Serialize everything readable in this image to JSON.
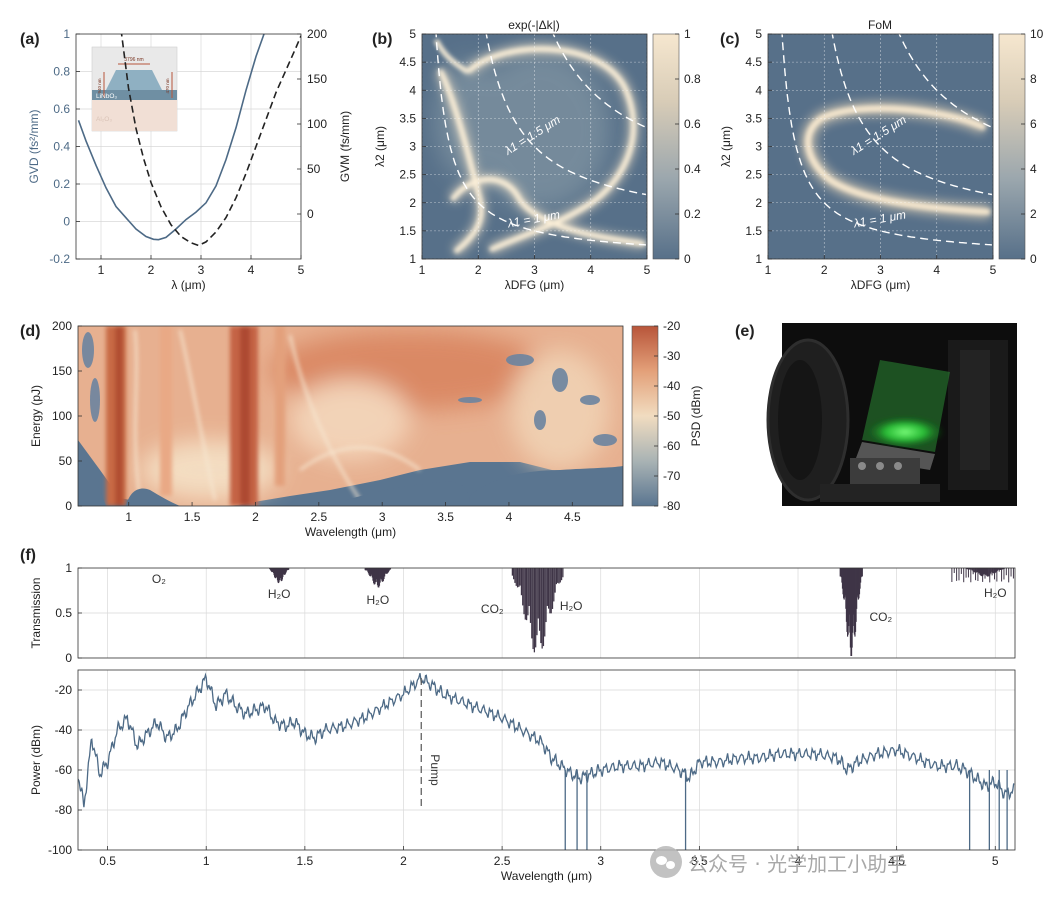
{
  "chart_data": [
    {
      "panel": "(a)",
      "type": "line",
      "xlabel": "λ (μm)",
      "ylabel_left": "GVD (fs²/mm)",
      "ylabel_right": "GVM (fs/mm)",
      "xlim": [
        0.5,
        5
      ],
      "ylim_left": [
        -0.2,
        1
      ],
      "ylim_right": [
        -50,
        200
      ],
      "x_ticks": [
        "1",
        "2",
        "3",
        "4",
        "5"
      ],
      "y_ticks_left": [
        "-0.2",
        "0",
        "0.2",
        "0.4",
        "0.6",
        "0.8",
        "1"
      ],
      "y_ticks_right": [
        "0",
        "50",
        "100",
        "150",
        "200"
      ],
      "series": [
        {
          "axis": "left",
          "style": "solid",
          "color": "#4d6a86",
          "x": [
            0.55,
            0.7,
            0.9,
            1.1,
            1.3,
            1.5,
            1.7,
            1.9,
            2.05,
            2.15,
            2.3,
            2.5,
            2.7,
            2.9,
            3.1,
            3.3,
            3.5,
            3.7,
            3.9,
            4.1,
            4.3
          ],
          "y": [
            0.54,
            0.43,
            0.3,
            0.18,
            0.08,
            0.02,
            -0.04,
            -0.08,
            -0.095,
            -0.097,
            -0.085,
            -0.04,
            0.01,
            0.05,
            0.1,
            0.19,
            0.33,
            0.5,
            0.7,
            0.88,
            1.03
          ]
        },
        {
          "axis": "right",
          "style": "dashed",
          "color": "#222222",
          "x": [
            1.4,
            1.55,
            1.7,
            1.85,
            2.0,
            2.2,
            2.4,
            2.6,
            2.8,
            2.95,
            3.1,
            3.3,
            3.5,
            3.7,
            3.9,
            4.1,
            4.3,
            4.5,
            4.7,
            4.9,
            5.0
          ],
          "y": [
            205,
            140,
            95,
            62,
            35,
            8,
            -12,
            -25,
            -32,
            -35,
            -31,
            -20,
            -4,
            18,
            45,
            75,
            105,
            135,
            160,
            185,
            198
          ]
        }
      ],
      "inset_labels": {
        "width": "3796 nm",
        "core": "LiNbO₃",
        "substrate": "Al₂O₃",
        "height_left": "940 nm",
        "height_right": "470 nm"
      }
    },
    {
      "panel": "(b)",
      "type": "heatmap",
      "title": "exp(-|Δk|)",
      "xlabel": "λDFG (μm)",
      "ylabel": "λ2 (μm)",
      "xlim": [
        1,
        5
      ],
      "ylim": [
        1,
        5
      ],
      "x_ticks": [
        "1",
        "2",
        "3",
        "4",
        "5"
      ],
      "y_ticks": [
        "1",
        "1.5",
        "2",
        "2.5",
        "3",
        "3.5",
        "4",
        "4.5",
        "5"
      ],
      "colorbar_ticks": [
        "0",
        "0.2",
        "0.4",
        "0.6",
        "0.8",
        "1"
      ],
      "colorbar_range": [
        0,
        1
      ],
      "contours": [
        {
          "label": "λ1 = 2 μm",
          "lambda1": 2
        },
        {
          "label": "λ1 = 1.5 μm",
          "lambda1": 1.5
        },
        {
          "label": "λ1 = 1 μm",
          "lambda1": 1
        }
      ],
      "colormap": [
        "#577089",
        "#9aa6ad",
        "#d8ccb7",
        "#f6e7cf"
      ]
    },
    {
      "panel": "(c)",
      "type": "heatmap",
      "title": "FoM",
      "xlabel": "λDFG (μm)",
      "ylabel": "λ2 (μm)",
      "xlim": [
        1,
        5
      ],
      "ylim": [
        1,
        5
      ],
      "x_ticks": [
        "1",
        "2",
        "3",
        "4",
        "5"
      ],
      "y_ticks": [
        "1",
        "1.5",
        "2",
        "2.5",
        "3",
        "3.5",
        "4",
        "4.5",
        "5"
      ],
      "colorbar_ticks": [
        "0",
        "2",
        "4",
        "6",
        "8",
        "10"
      ],
      "colorbar_range": [
        0,
        10
      ],
      "contours": [
        {
          "label": "λ1 = 2 μm",
          "lambda1": 2
        },
        {
          "label": "λ1 = 1.5 μm",
          "lambda1": 1.5
        },
        {
          "label": "λ1 = 1 μm",
          "lambda1": 1
        }
      ],
      "colormap": [
        "#577089",
        "#9aa6ad",
        "#d8ccb7",
        "#f6e7cf"
      ]
    },
    {
      "panel": "(d)",
      "type": "heatmap",
      "xlabel": "Wavelength (μm)",
      "ylabel": "Energy (pJ)",
      "colorbar_label": "PSD (dBm)",
      "xlim": [
        0.6,
        4.9
      ],
      "ylim": [
        0,
        200
      ],
      "x_ticks": [
        "1",
        "1.5",
        "2",
        "2.5",
        "3",
        "3.5",
        "4",
        "4.5"
      ],
      "y_ticks": [
        "0",
        "50",
        "100",
        "150",
        "200"
      ],
      "colorbar_ticks": [
        "-20",
        "-30",
        "-40",
        "-50",
        "-60",
        "-70",
        "-80"
      ],
      "colorbar_range": [
        -80,
        -20
      ],
      "colormap": [
        "#5a7590",
        "#a9b3b4",
        "#f1dcc0",
        "#e3a079",
        "#b8553a"
      ]
    },
    {
      "panel": "(e)",
      "type": "photo"
    },
    {
      "panel": "(f)",
      "type": "line",
      "xlabel": "Wavelength (μm)",
      "ylabel_top": "Transmission",
      "ylabel_bottom": "Power (dBm)",
      "xlim": [
        0.35,
        5.1
      ],
      "x_ticks": [
        "0.5",
        "1",
        "1.5",
        "2",
        "2.5",
        "3",
        "3.5",
        "4",
        "4.5",
        "5"
      ],
      "ylim_top": [
        0,
        1
      ],
      "y_ticks_top": [
        "0",
        "0.5",
        "1"
      ],
      "ylim_bottom": [
        -100,
        -10
      ],
      "y_ticks_bottom": [
        "-20",
        "-40",
        "-60",
        "-80",
        "-100"
      ],
      "pump_label": "Pump",
      "pump_x": 2.09,
      "absorption_labels": [
        {
          "text": "O₂",
          "x": 0.76
        },
        {
          "text": "H₂O",
          "x": 1.37
        },
        {
          "text": "H₂O",
          "x": 1.87
        },
        {
          "text": "CO₂",
          "x": 2.45
        },
        {
          "text": "H₂O",
          "x": 2.85
        },
        {
          "text": "CO₂",
          "x": 4.42
        },
        {
          "text": "H₂O",
          "x": 5.0
        }
      ],
      "transmission_bands": [
        {
          "center": 1.37,
          "width": 0.03,
          "depth": 0.17
        },
        {
          "center": 1.87,
          "width": 0.04,
          "depth": 0.22
        },
        {
          "center": 2.68,
          "width": 0.08,
          "depth": 0.98
        },
        {
          "center": 4.27,
          "width": 0.035,
          "depth": 0.99
        },
        {
          "center": 4.95,
          "width": 0.06,
          "depth": 0.1
        }
      ],
      "spectrum": {
        "x": [
          0.35,
          0.38,
          0.42,
          0.46,
          0.5,
          0.55,
          0.6,
          0.65,
          0.7,
          0.75,
          0.8,
          0.85,
          0.9,
          0.95,
          1.0,
          1.05,
          1.1,
          1.15,
          1.2,
          1.25,
          1.3,
          1.35,
          1.4,
          1.45,
          1.5,
          1.55,
          1.6,
          1.7,
          1.8,
          1.9,
          2.0,
          2.09,
          2.15,
          2.2,
          2.3,
          2.4,
          2.5,
          2.6,
          2.7,
          2.75,
          2.8,
          2.85,
          2.9,
          2.95,
          3.0,
          3.1,
          3.2,
          3.3,
          3.4,
          3.45,
          3.5,
          3.6,
          3.7,
          3.8,
          3.9,
          4.0,
          4.1,
          4.2,
          4.25,
          4.3,
          4.4,
          4.5,
          4.6,
          4.7,
          4.8,
          4.85,
          4.9,
          4.95,
          5.0,
          5.05,
          5.1
        ],
        "y": [
          -62,
          -78,
          -44,
          -62,
          -56,
          -40,
          -34,
          -48,
          -42,
          -36,
          -44,
          -40,
          -30,
          -22,
          -14,
          -28,
          -22,
          -28,
          -32,
          -30,
          -28,
          -36,
          -38,
          -36,
          -42,
          -44,
          -40,
          -38,
          -34,
          -28,
          -22,
          -14,
          -18,
          -22,
          -26,
          -30,
          -34,
          -40,
          -46,
          -54,
          -58,
          -62,
          -64,
          -62,
          -60,
          -58,
          -58,
          -56,
          -60,
          -64,
          -56,
          -56,
          -54,
          -54,
          -52,
          -52,
          -52,
          -54,
          -60,
          -56,
          -52,
          -50,
          -54,
          -58,
          -58,
          -60,
          -64,
          -68,
          -66,
          -72,
          -70
        ]
      }
    }
  ]
}
